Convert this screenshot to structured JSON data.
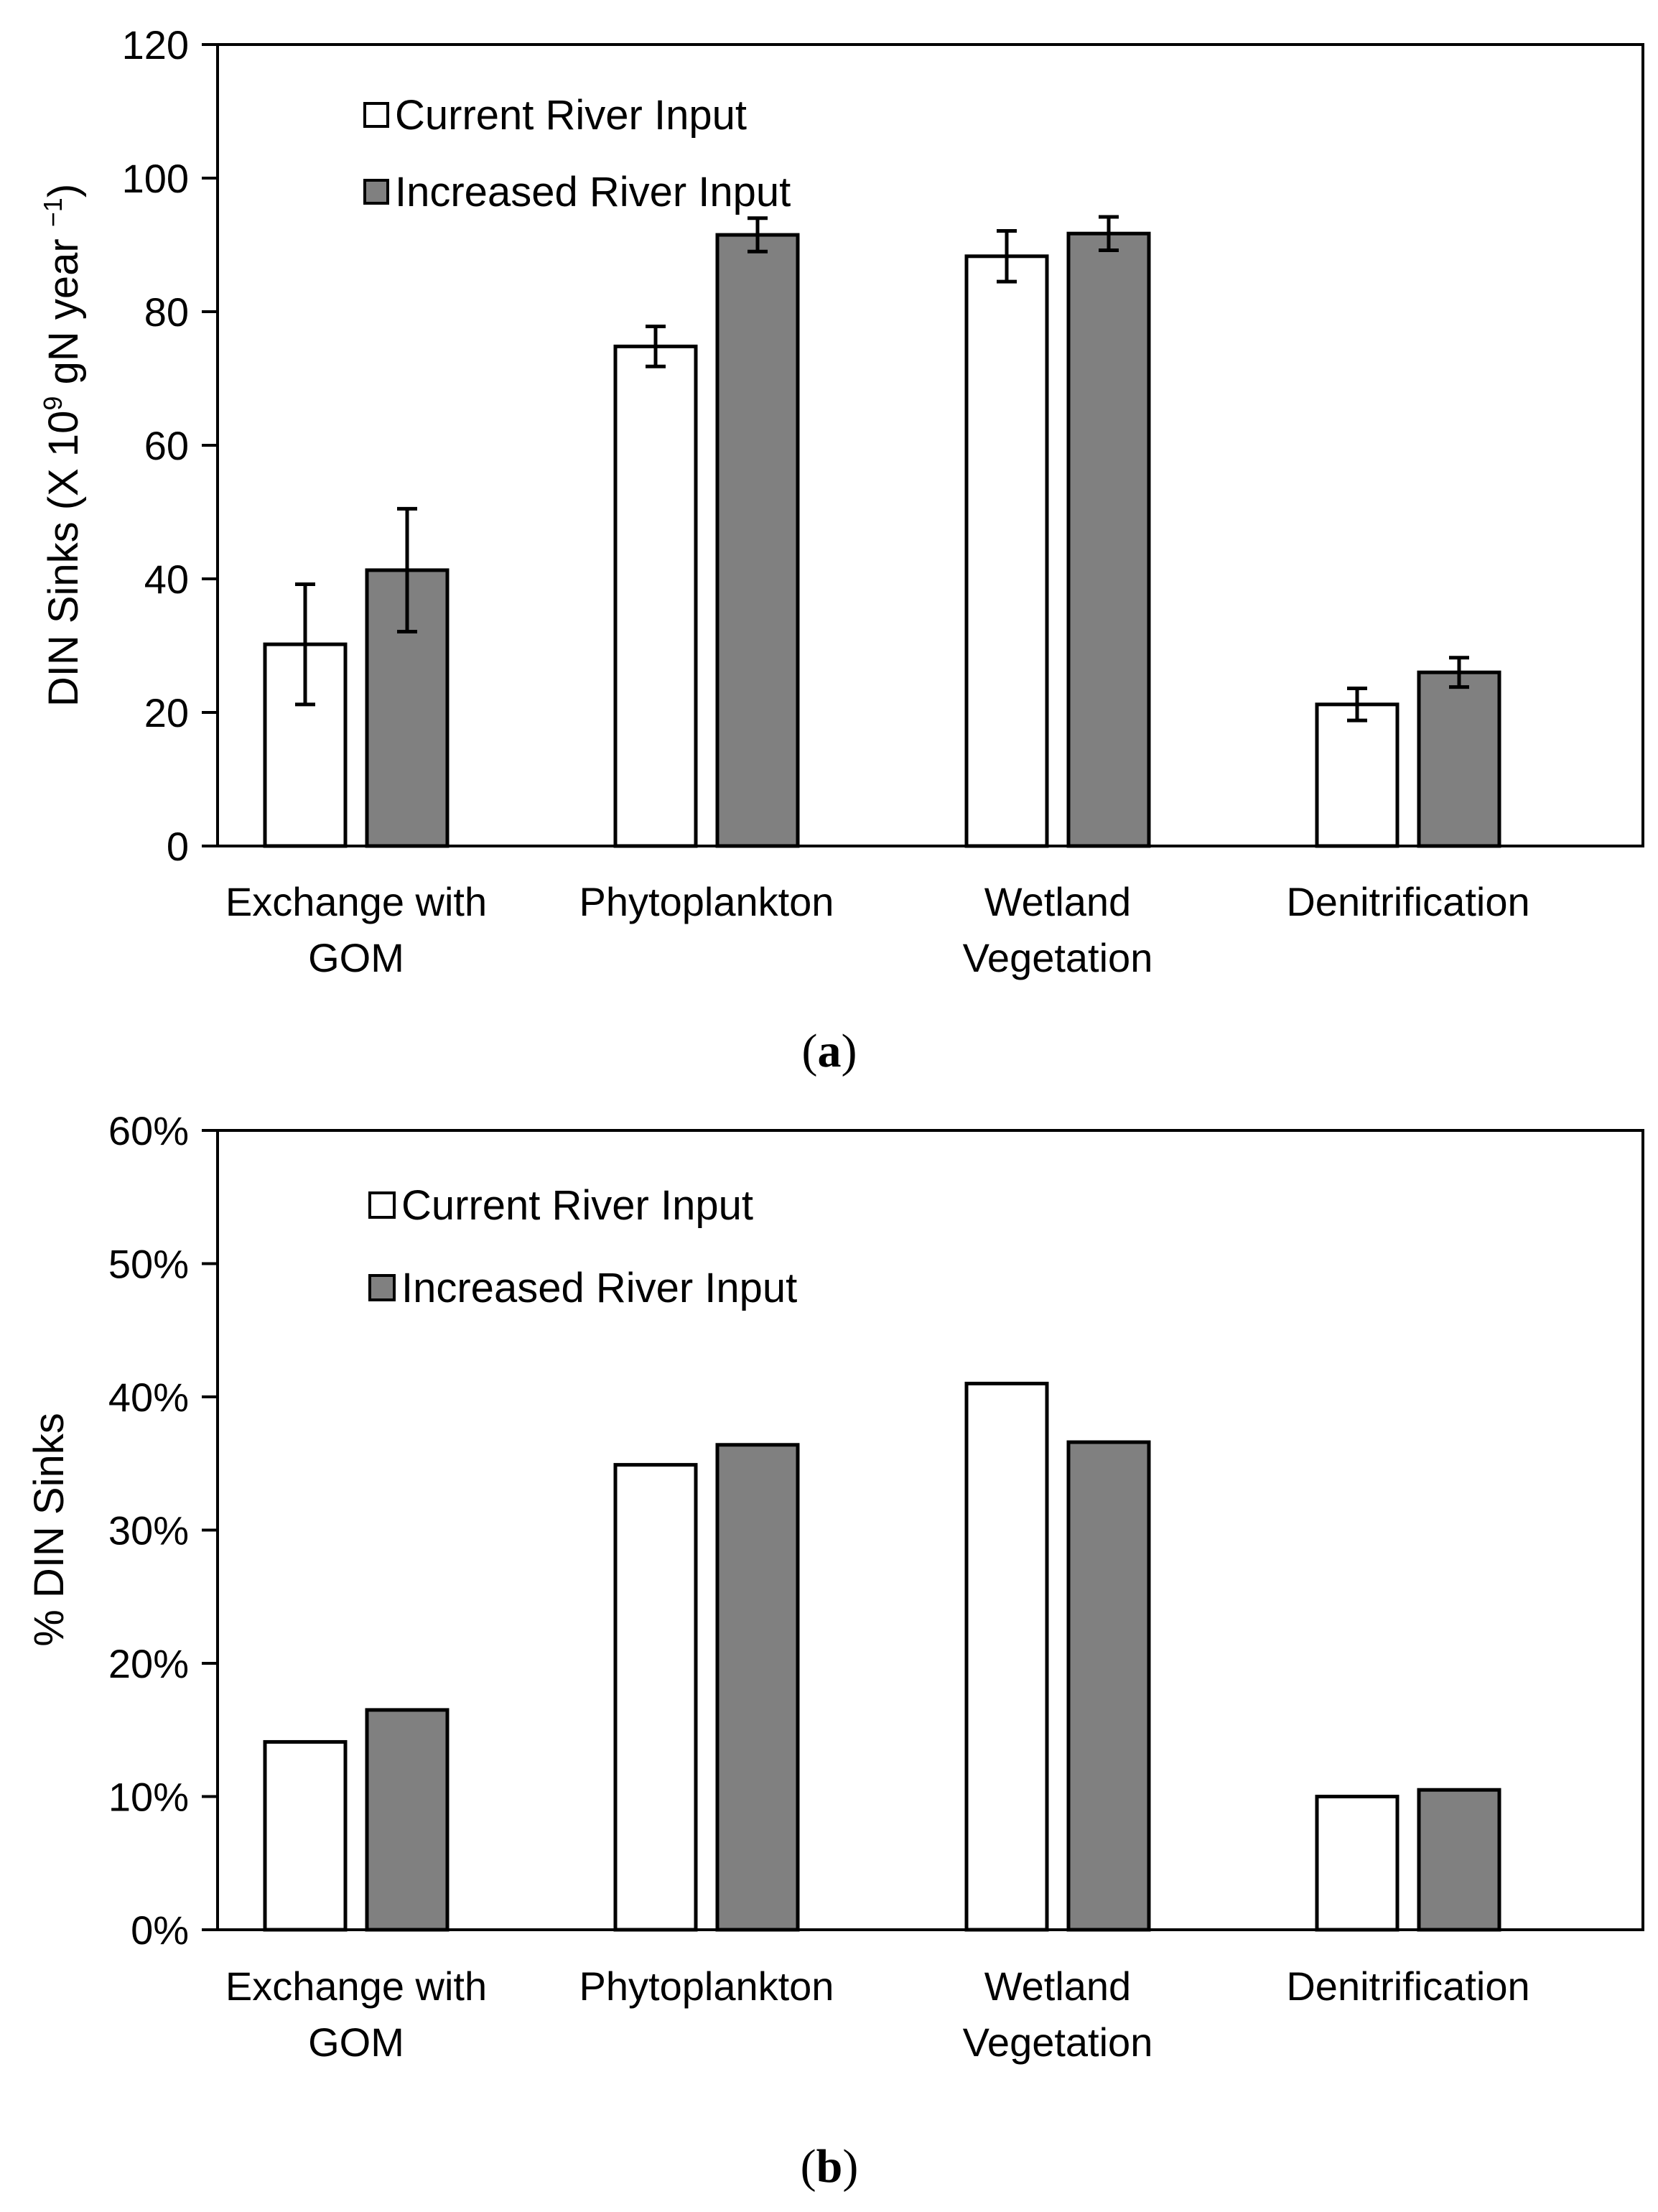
{
  "chart_data": [
    {
      "type": "bar",
      "panel": "a",
      "ylabel_main": "DIN Sinks (X 10",
      "ylabel_sup1": "9",
      "ylabel_mid": " gN year ",
      "ylabel_sup2": "−1",
      "ylabel_end": ")",
      "ylim": [
        0,
        120
      ],
      "yticks": [
        0,
        20,
        40,
        60,
        80,
        100,
        120
      ],
      "ytick_labels": [
        "0",
        "20",
        "40",
        "60",
        "80",
        "100",
        "120"
      ],
      "categories": [
        [
          "Exchange with",
          "GOM"
        ],
        [
          "Phytoplankton"
        ],
        [
          "Wetland",
          "Vegetation"
        ],
        [
          "Denitrification"
        ]
      ],
      "series": [
        {
          "name": "Current River Input",
          "color": "#ffffff",
          "values": [
            30.2,
            74.8,
            88.3,
            21.2
          ],
          "errors": [
            9.0,
            3.0,
            3.8,
            2.4
          ]
        },
        {
          "name": "Increased River Input",
          "color": "#808080",
          "values": [
            41.3,
            91.5,
            91.7,
            26.0
          ],
          "errors": [
            9.2,
            2.5,
            2.5,
            2.2
          ]
        }
      ],
      "legend_position": "top-left",
      "panel_label": "a"
    },
    {
      "type": "bar",
      "panel": "b",
      "ylabel": "% DIN Sinks",
      "ylim": [
        0,
        60
      ],
      "yticks": [
        0,
        10,
        20,
        30,
        40,
        50,
        60
      ],
      "ytick_labels": [
        "0%",
        "10%",
        "20%",
        "30%",
        "40%",
        "50%",
        "60%"
      ],
      "categories": [
        [
          "Exchange with",
          "GOM"
        ],
        [
          "Phytoplankton"
        ],
        [
          "Wetland",
          "Vegetation"
        ],
        [
          "Denitrification"
        ]
      ],
      "series": [
        {
          "name": "Current River Input",
          "color": "#ffffff",
          "values": [
            14.1,
            34.9,
            41.0,
            10.0
          ]
        },
        {
          "name": "Increased River Input",
          "color": "#808080",
          "values": [
            16.5,
            36.4,
            36.6,
            10.5
          ]
        }
      ],
      "legend_position": "top-left",
      "panel_label": "b"
    }
  ]
}
